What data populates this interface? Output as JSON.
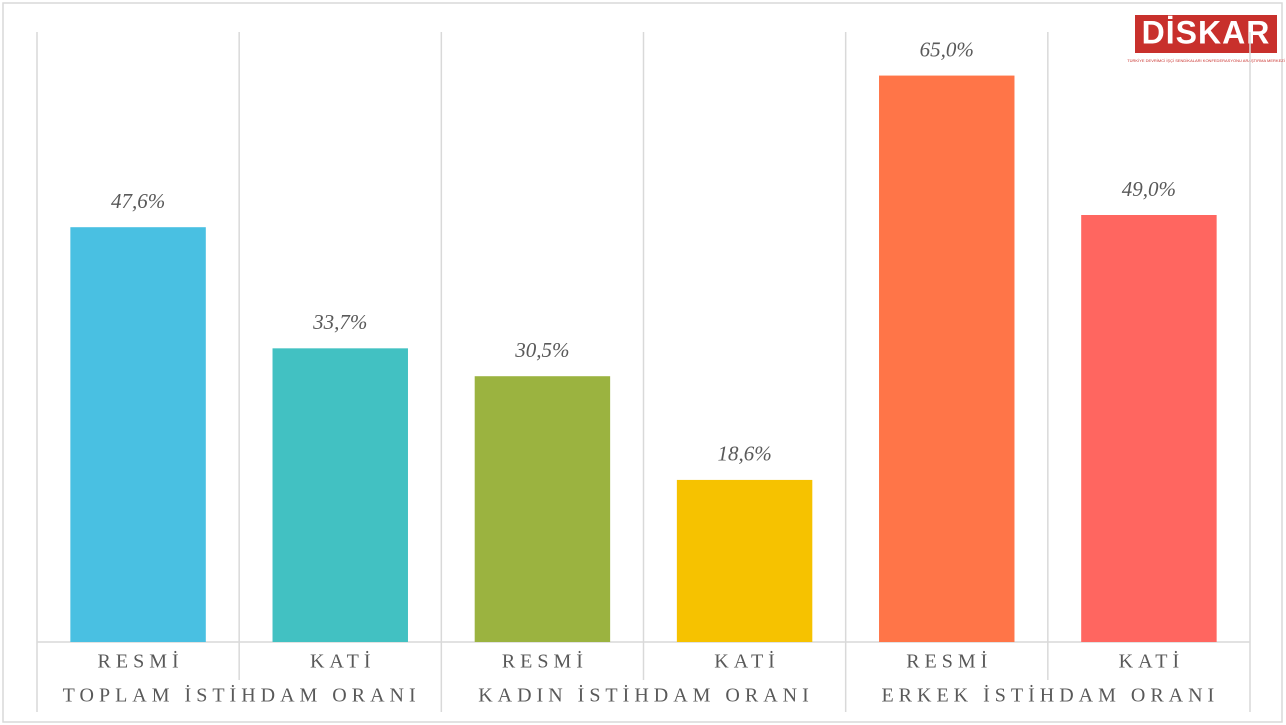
{
  "chart_data": {
    "type": "bar",
    "logo": "DİSKAR",
    "logo_subtitle": "TÜRKİYE DEVRİMCİ İŞÇİ SENDİKALARI KONFEDERASYONU ARAŞTIRMA MERKEZİ",
    "groups": [
      "TOPLAM İSTİHDAM ORANI",
      "KADIN İSTİHDAM ORANI",
      "ERKEK İSTİHDAM ORANI"
    ],
    "categories": [
      "RESMİ",
      "KATİ",
      "RESMİ",
      "KATİ",
      "RESMİ",
      "KATİ"
    ],
    "values": [
      47.6,
      33.7,
      30.5,
      18.6,
      65.0,
      49.0
    ],
    "value_labels": [
      "47,6%",
      "33,7%",
      "30,5%",
      "18,6%",
      "65,0%",
      "49,0%"
    ],
    "colors": [
      "#49c0e2",
      "#42c1c2",
      "#9bb340",
      "#f6c200",
      "#ff7548",
      "#ff6660"
    ],
    "ylim": [
      0,
      70
    ]
  }
}
